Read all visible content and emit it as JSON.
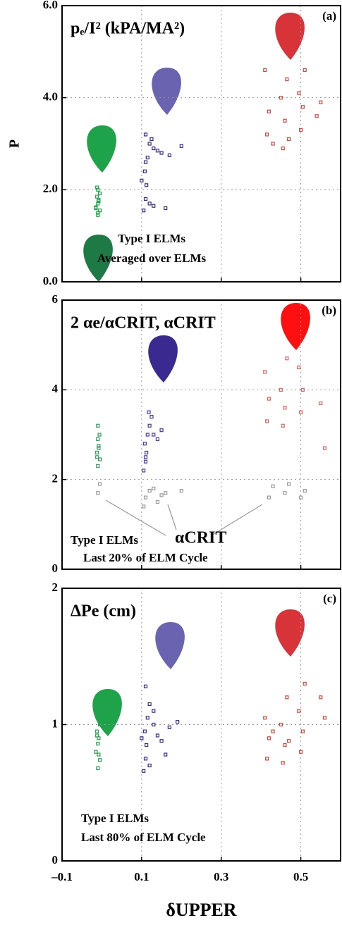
{
  "chart_data": [
    {
      "type": "scatter",
      "title": "pₑ/I² (kPA/MA²)",
      "label": "(a)",
      "ylabel": "P",
      "annotations": [
        "Type I ELMs",
        "Averaged over ELMs"
      ],
      "xlim": [
        -0.1,
        0.6
      ],
      "ylim": [
        0,
        6
      ],
      "yticks": [
        {
          "value": 0,
          "label": "0.0"
        },
        {
          "value": 2,
          "label": "2.0"
        },
        {
          "value": 4,
          "label": "4.0"
        },
        {
          "value": 6,
          "label": "6.0"
        }
      ],
      "grid": true,
      "series": [
        {
          "color": "#1fa34a",
          "x": [
            -0.01,
            -0.005,
            -0.015,
            -0.01,
            -0.008,
            -0.012,
            -0.005,
            -0.01,
            -0.015,
            -0.008,
            -0.012,
            -0.01
          ],
          "values": [
            1.45,
            1.55,
            1.62,
            1.7,
            1.78,
            1.85,
            1.92,
            2.0,
            1.6,
            1.75,
            2.05,
            1.5
          ]
        },
        {
          "color": "#3a2a90",
          "x": [
            0.105,
            0.11,
            0.112,
            0.108,
            0.115,
            0.12,
            0.11,
            0.13,
            0.14,
            0.15,
            0.17,
            0.2,
            0.12,
            0.13,
            0.16,
            0.1,
            0.11,
            0.125
          ],
          "values": [
            1.55,
            1.8,
            2.1,
            2.4,
            2.7,
            3.0,
            3.2,
            2.9,
            2.85,
            2.8,
            2.75,
            2.95,
            1.7,
            1.65,
            1.6,
            2.2,
            2.6,
            3.1
          ]
        },
        {
          "color": "#d9453a",
          "x": [
            0.415,
            0.42,
            0.41,
            0.455,
            0.46,
            0.45,
            0.465,
            0.5,
            0.505,
            0.495,
            0.51,
            0.54,
            0.55,
            0.43,
            0.47
          ],
          "values": [
            3.2,
            3.7,
            4.6,
            2.9,
            3.5,
            4.0,
            4.4,
            3.3,
            3.8,
            4.1,
            4.6,
            3.6,
            3.9,
            3.0,
            3.1
          ]
        }
      ]
    },
    {
      "type": "scatter",
      "title": "2 αe/αCRIT, αCRIT",
      "label": "(b)",
      "annotations": [
        "Type I ELMs",
        "Last 20% of ELM Cycle",
        "αCRIT"
      ],
      "xlim": [
        -0.1,
        0.6
      ],
      "ylim": [
        0,
        6
      ],
      "yticks": [
        0,
        2,
        4,
        6
      ],
      "grid": true,
      "series": [
        {
          "color": "#2f9a5a",
          "x": [
            -0.01,
            -0.005,
            -0.012,
            -0.008,
            -0.01,
            -0.006,
            -0.01,
            -0.012,
            -0.008
          ],
          "values": [
            2.3,
            2.45,
            2.6,
            2.75,
            2.9,
            3.0,
            3.2,
            2.5,
            2.7
          ]
        },
        {
          "color": "#999999",
          "x": [
            -0.01,
            -0.005,
            0.105,
            0.11,
            0.12,
            0.13,
            0.14,
            0.15,
            0.16,
            0.42,
            0.43,
            0.46,
            0.47,
            0.5,
            0.51,
            0.2
          ],
          "values": [
            1.7,
            1.9,
            1.4,
            1.6,
            1.75,
            1.8,
            1.5,
            1.65,
            1.7,
            1.6,
            1.85,
            1.7,
            1.9,
            1.6,
            1.75,
            1.75
          ]
        },
        {
          "color": "#4a3aa8",
          "x": [
            0.105,
            0.11,
            0.112,
            0.108,
            0.115,
            0.12,
            0.125,
            0.13,
            0.14,
            0.15,
            0.11,
            0.118
          ],
          "values": [
            2.2,
            2.4,
            2.6,
            2.8,
            3.0,
            3.2,
            3.4,
            3.0,
            2.9,
            3.1,
            2.5,
            3.5
          ]
        },
        {
          "color": "#e0625a",
          "x": [
            0.415,
            0.42,
            0.41,
            0.455,
            0.46,
            0.45,
            0.465,
            0.5,
            0.505,
            0.495,
            0.55,
            0.56
          ],
          "values": [
            3.3,
            3.8,
            4.4,
            3.2,
            3.6,
            4.0,
            4.7,
            3.5,
            4.0,
            4.5,
            3.7,
            2.7
          ]
        }
      ]
    },
    {
      "type": "scatter",
      "title": "ΔPe (cm)",
      "label": "(c)",
      "xlabel": "δUPPER",
      "annotations": [
        "Type I ELMs",
        "Last 80% of ELM Cycle"
      ],
      "xlim": [
        -0.1,
        0.6
      ],
      "ylim": [
        0,
        2
      ],
      "yticks": [
        0,
        1,
        2
      ],
      "xticks": [
        {
          "value": -0.1,
          "label": "–0.1"
        },
        0.1,
        0.3,
        0.5
      ],
      "grid": true,
      "series": [
        {
          "color": "#1fa34a",
          "x": [
            -0.01,
            -0.005,
            -0.015,
            -0.01,
            -0.008,
            -0.012,
            -0.005,
            -0.01,
            -0.015,
            -0.008,
            -0.012
          ],
          "values": [
            0.68,
            0.74,
            0.8,
            0.86,
            0.9,
            0.95,
            1.0,
            1.05,
            1.1,
            0.78,
            0.92
          ]
        },
        {
          "color": "#3a2a90",
          "x": [
            0.105,
            0.11,
            0.112,
            0.108,
            0.115,
            0.12,
            0.11,
            0.13,
            0.14,
            0.15,
            0.17,
            0.19,
            0.12,
            0.13,
            0.16,
            0.1
          ],
          "values": [
            0.66,
            0.75,
            0.85,
            0.95,
            1.05,
            1.15,
            1.28,
            1.0,
            0.92,
            0.88,
            0.98,
            1.02,
            0.7,
            1.1,
            0.78,
            0.9
          ]
        },
        {
          "color": "#d9453a",
          "x": [
            0.415,
            0.42,
            0.41,
            0.455,
            0.46,
            0.45,
            0.465,
            0.5,
            0.505,
            0.495,
            0.51,
            0.55,
            0.56,
            0.43,
            0.47
          ],
          "values": [
            0.75,
            0.9,
            1.05,
            0.72,
            0.85,
            1.0,
            1.2,
            0.8,
            0.95,
            1.1,
            1.3,
            1.2,
            1.05,
            0.95,
            0.88
          ]
        }
      ]
    }
  ]
}
